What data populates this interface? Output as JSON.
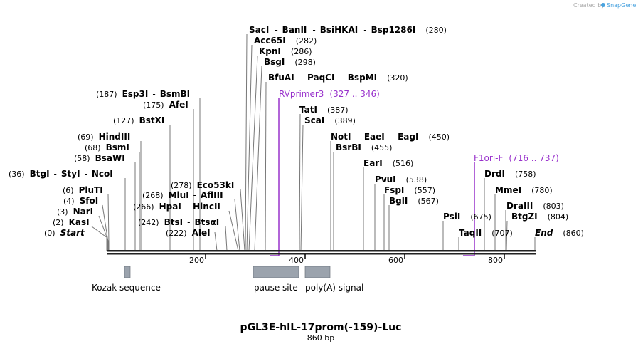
{
  "credit": {
    "text": "Created by",
    "brand": "SnapGene"
  },
  "title": "pGL3E-hIL-17prom(-159)-Luc",
  "subtitle": "860 bp",
  "ticks": [
    "200",
    "400",
    "600",
    "800"
  ],
  "features": [
    {
      "label": "Kozak sequence"
    },
    {
      "label": "pause site"
    },
    {
      "label": "poly(A) signal"
    }
  ],
  "primers": [
    {
      "name": "RVprimer3",
      "range": "(327 .. 346)"
    },
    {
      "name": "F1ori-F",
      "range": "(716 .. 737)"
    }
  ],
  "left_labels": [
    {
      "pos": "(0)",
      "names": [
        "Start"
      ],
      "italic": true
    },
    {
      "pos": "(2)",
      "names": [
        "KasI"
      ]
    },
    {
      "pos": "(3)",
      "names": [
        "NarI"
      ]
    },
    {
      "pos": "(4)",
      "names": [
        "SfoI"
      ]
    },
    {
      "pos": "(6)",
      "names": [
        "PluTI"
      ]
    },
    {
      "pos": "(36)",
      "names": [
        "BtgI",
        "StyI",
        "NcoI"
      ]
    },
    {
      "pos": "(58)",
      "names": [
        "BsaWI"
      ]
    },
    {
      "pos": "(68)",
      "names": [
        "BsmI"
      ]
    },
    {
      "pos": "(69)",
      "names": [
        "HindIII"
      ]
    },
    {
      "pos": "(127)",
      "names": [
        "BstXI"
      ]
    },
    {
      "pos": "(175)",
      "names": [
        "AfeI"
      ]
    },
    {
      "pos": "(187)",
      "names": [
        "Esp3I",
        "BsmBI"
      ]
    },
    {
      "pos": "(222)",
      "names": [
        "AleI"
      ]
    },
    {
      "pos": "(242)",
      "names": [
        "BtsI",
        "BtsαI"
      ]
    },
    {
      "pos": "(266)",
      "names": [
        "HpaI",
        "HincII"
      ]
    },
    {
      "pos": "(268)",
      "names": [
        "MluI",
        "AflIII"
      ]
    },
    {
      "pos": "(278)",
      "names": [
        "Eco53kI"
      ]
    }
  ],
  "right_labels": [
    {
      "pos": "(280)",
      "names": [
        "SacI",
        "BanII",
        "BsiHKAI",
        "Bsp1286I"
      ]
    },
    {
      "pos": "(282)",
      "names": [
        "Acc65I"
      ]
    },
    {
      "pos": "(286)",
      "names": [
        "KpnI"
      ]
    },
    {
      "pos": "(298)",
      "names": [
        "BsgI"
      ]
    },
    {
      "pos": "(320)",
      "names": [
        "BfuAI",
        "PaqCI",
        "BspMI"
      ]
    },
    {
      "pos": "(387)",
      "names": [
        "TatI"
      ]
    },
    {
      "pos": "(389)",
      "names": [
        "ScaI"
      ]
    },
    {
      "pos": "(450)",
      "names": [
        "NotI",
        "EaeI",
        "EagI"
      ]
    },
    {
      "pos": "(455)",
      "names": [
        "BsrBI"
      ]
    },
    {
      "pos": "(516)",
      "names": [
        "EarI"
      ]
    },
    {
      "pos": "(538)",
      "names": [
        "PvuI"
      ]
    },
    {
      "pos": "(557)",
      "names": [
        "FspI"
      ]
    },
    {
      "pos": "(567)",
      "names": [
        "BglI"
      ]
    },
    {
      "pos": "(675)",
      "names": [
        "PsiI"
      ]
    },
    {
      "pos": "(707)",
      "names": [
        "TaqII"
      ]
    },
    {
      "pos": "(758)",
      "names": [
        "DrdI"
      ]
    },
    {
      "pos": "(780)",
      "names": [
        "MmeI"
      ]
    },
    {
      "pos": "(803)",
      "names": [
        "DraIII"
      ]
    },
    {
      "pos": "(804)",
      "names": [
        "BtgZI"
      ]
    },
    {
      "pos": "(860)",
      "names": [
        "End"
      ],
      "italic": true
    }
  ]
}
